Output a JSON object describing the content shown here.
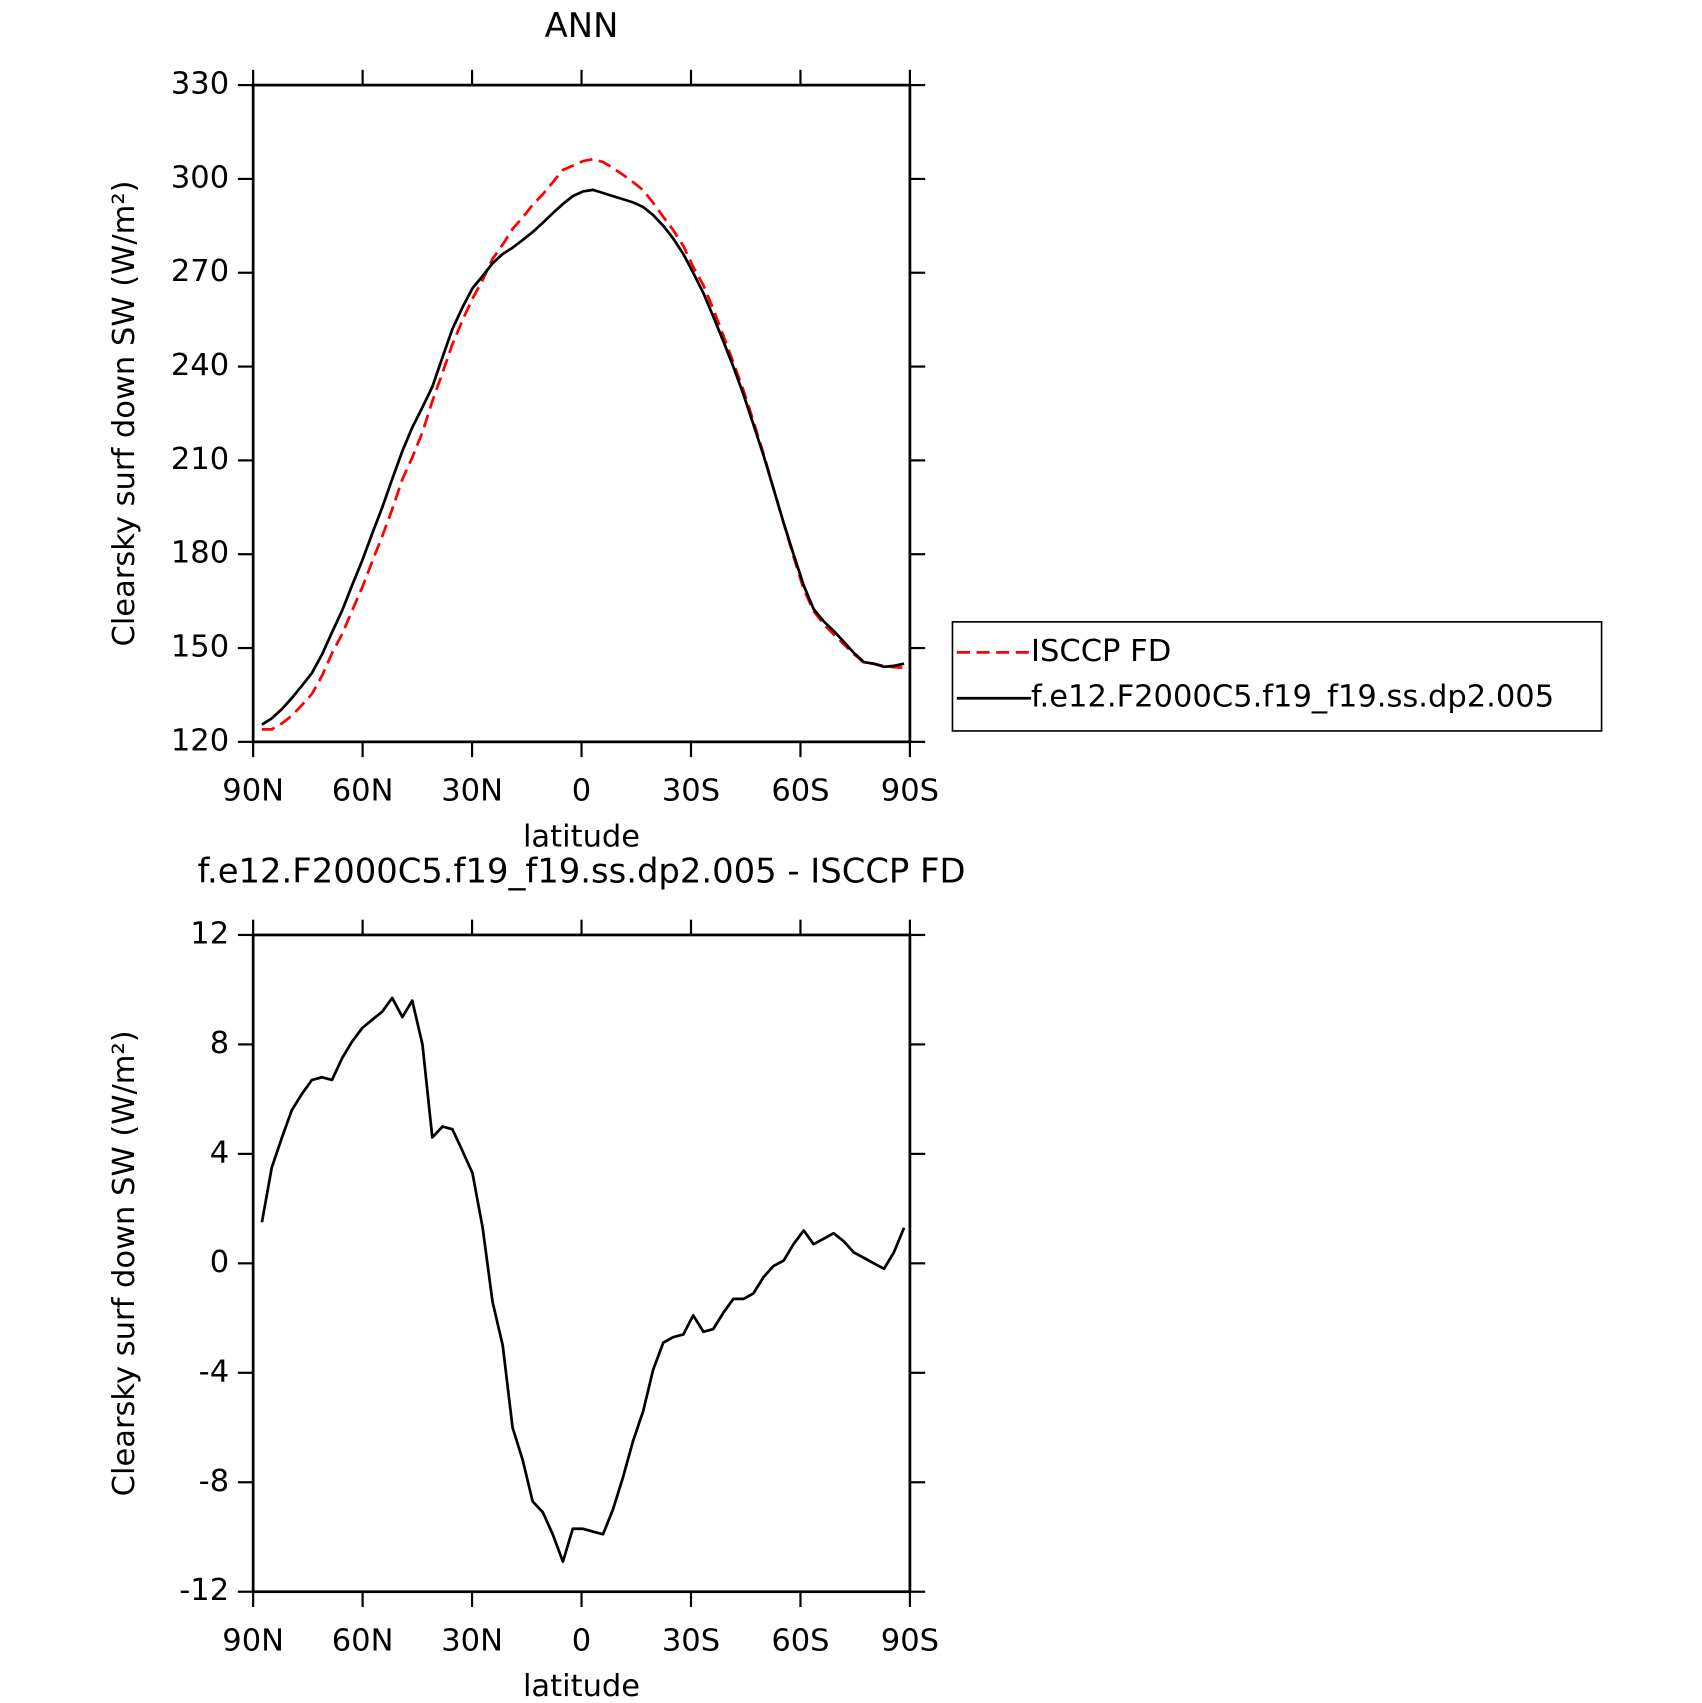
{
  "chart_data": [
    {
      "type": "line",
      "title": "ANN",
      "xlabel": "latitude",
      "ylabel": "Clearsky surf down SW (W/m²)",
      "x": [
        87.6,
        84.9,
        82.1,
        79.4,
        76.6,
        73.9,
        71.1,
        68.4,
        65.6,
        62.9,
        60.1,
        57.4,
        54.6,
        51.9,
        49.1,
        46.4,
        43.6,
        40.9,
        38.1,
        35.4,
        32.6,
        29.9,
        27.1,
        24.4,
        21.6,
        18.9,
        16.1,
        13.4,
        10.6,
        7.9,
        5.1,
        2.4,
        -0.4,
        -3.1,
        -5.9,
        -8.6,
        -11.4,
        -14.1,
        -16.9,
        -19.6,
        -22.4,
        -25.1,
        -27.9,
        -30.6,
        -33.4,
        -36.1,
        -38.9,
        -41.6,
        -44.4,
        -47.1,
        -49.9,
        -52.6,
        -55.4,
        -58.1,
        -60.9,
        -63.6,
        -66.4,
        -69.1,
        -71.9,
        -74.6,
        -77.4,
        -80.1,
        -82.9,
        -85.6,
        -88.4
      ],
      "series": [
        {
          "name": "ISCCP FD",
          "color": "#ff0000",
          "dash": true,
          "values": [
            124,
            124,
            125.9,
            128.4,
            131.8,
            135.3,
            141.2,
            148.3,
            154.5,
            161.9,
            169.4,
            177.6,
            185.8,
            194.3,
            204,
            210.9,
            219,
            228.9,
            238,
            247.1,
            254.9,
            261.7,
            267.7,
            274.4,
            279,
            284,
            287.7,
            291.7,
            295.1,
            298.9,
            302.9,
            304.2,
            305.7,
            306.3,
            305.4,
            303.5,
            301.3,
            299,
            296.4,
            292.4,
            287.9,
            283.7,
            278.6,
            271.9,
            266,
            258.4,
            249.8,
            241.3,
            232.3,
            222.6,
            212,
            201.1,
            189.9,
            179.3,
            168.8,
            161.8,
            157.6,
            154.4,
            151.2,
            148.1,
            145.3,
            145,
            144.2,
            143.9,
            143.7
          ]
        },
        {
          "name": "f.e12.F2000C5.f19_f19.ss.dp2.005",
          "color": "#000000",
          "dash": false,
          "values": [
            125.5,
            127.5,
            130.5,
            134,
            138,
            142,
            148,
            155,
            162,
            170,
            178,
            186.5,
            195,
            204,
            213,
            220.5,
            227,
            233.5,
            243,
            252,
            259,
            265,
            269,
            273,
            276,
            278,
            280.5,
            283,
            286,
            289,
            292,
            294.5,
            296,
            296.5,
            295.5,
            294.5,
            293.5,
            292.5,
            291,
            288.5,
            285,
            281,
            276,
            270,
            263.5,
            256,
            248,
            240,
            231,
            221.5,
            211.5,
            201,
            190,
            180,
            170,
            162.5,
            158.5,
            155.5,
            152,
            148.5,
            145.5,
            145,
            144,
            144.3,
            145
          ]
        }
      ],
      "xlim": [
        90,
        -90
      ],
      "xticks": [
        {
          "value": 90,
          "label": "90N"
        },
        {
          "value": 60,
          "label": "60N"
        },
        {
          "value": 30,
          "label": "30N"
        },
        0,
        {
          "value": -30,
          "label": "30S"
        },
        {
          "value": -60,
          "label": "60S"
        },
        {
          "value": -90,
          "label": "90S"
        }
      ],
      "ylim": [
        120,
        330
      ],
      "yticks": [
        120,
        150,
        180,
        210,
        240,
        270,
        300,
        330
      ],
      "legend": "right"
    },
    {
      "type": "line",
      "title": "f.e12.F2000C5.f19_f19.ss.dp2.005 - ISCCP FD",
      "xlabel": "latitude",
      "ylabel": "Clearsky surf down SW (W/m²)",
      "x": [
        87.6,
        84.9,
        82.1,
        79.4,
        76.6,
        73.9,
        71.1,
        68.4,
        65.6,
        62.9,
        60.1,
        57.4,
        54.6,
        51.9,
        49.1,
        46.4,
        43.6,
        40.9,
        38.1,
        35.4,
        32.6,
        29.9,
        27.1,
        24.4,
        21.6,
        18.9,
        16.1,
        13.4,
        10.6,
        7.9,
        5.1,
        2.4,
        -0.4,
        -3.1,
        -5.9,
        -8.6,
        -11.4,
        -14.1,
        -16.9,
        -19.6,
        -22.4,
        -25.1,
        -27.9,
        -30.6,
        -33.4,
        -36.1,
        -38.9,
        -41.6,
        -44.4,
        -47.1,
        -49.9,
        -52.6,
        -55.4,
        -58.1,
        -60.9,
        -63.6,
        -66.4,
        -69.1,
        -71.9,
        -74.6,
        -77.4,
        -80.1,
        -82.9,
        -85.6,
        -88.4
      ],
      "series": [
        {
          "color": "#000000",
          "dash": false,
          "values": [
            1.5,
            3.5,
            4.6,
            5.6,
            6.2,
            6.7,
            6.8,
            6.7,
            7.5,
            8.1,
            8.6,
            8.9,
            9.2,
            9.7,
            9.0,
            9.6,
            8.0,
            4.6,
            5.0,
            4.9,
            4.1,
            3.3,
            1.3,
            -1.4,
            -3.0,
            -6.0,
            -7.2,
            -8.7,
            -9.1,
            -9.9,
            -10.9,
            -9.7,
            -9.7,
            -9.8,
            -9.9,
            -9.0,
            -7.8,
            -6.5,
            -5.4,
            -3.9,
            -2.9,
            -2.7,
            -2.6,
            -1.9,
            -2.5,
            -2.4,
            -1.8,
            -1.3,
            -1.3,
            -1.1,
            -0.5,
            -0.1,
            0.1,
            0.7,
            1.2,
            0.7,
            0.9,
            1.1,
            0.8,
            0.4,
            0.2,
            0.0,
            -0.2,
            0.4,
            1.3
          ]
        }
      ],
      "xlim": [
        90,
        -90
      ],
      "xticks": [
        {
          "value": 90,
          "label": "90N"
        },
        {
          "value": 60,
          "label": "60N"
        },
        {
          "value": 30,
          "label": "30N"
        },
        0,
        {
          "value": -30,
          "label": "30S"
        },
        {
          "value": -60,
          "label": "60S"
        },
        {
          "value": -90,
          "label": "90S"
        }
      ],
      "ylim": [
        -12,
        12
      ],
      "yticks": [
        -12,
        -8,
        -4,
        0,
        4,
        8,
        12
      ]
    }
  ]
}
